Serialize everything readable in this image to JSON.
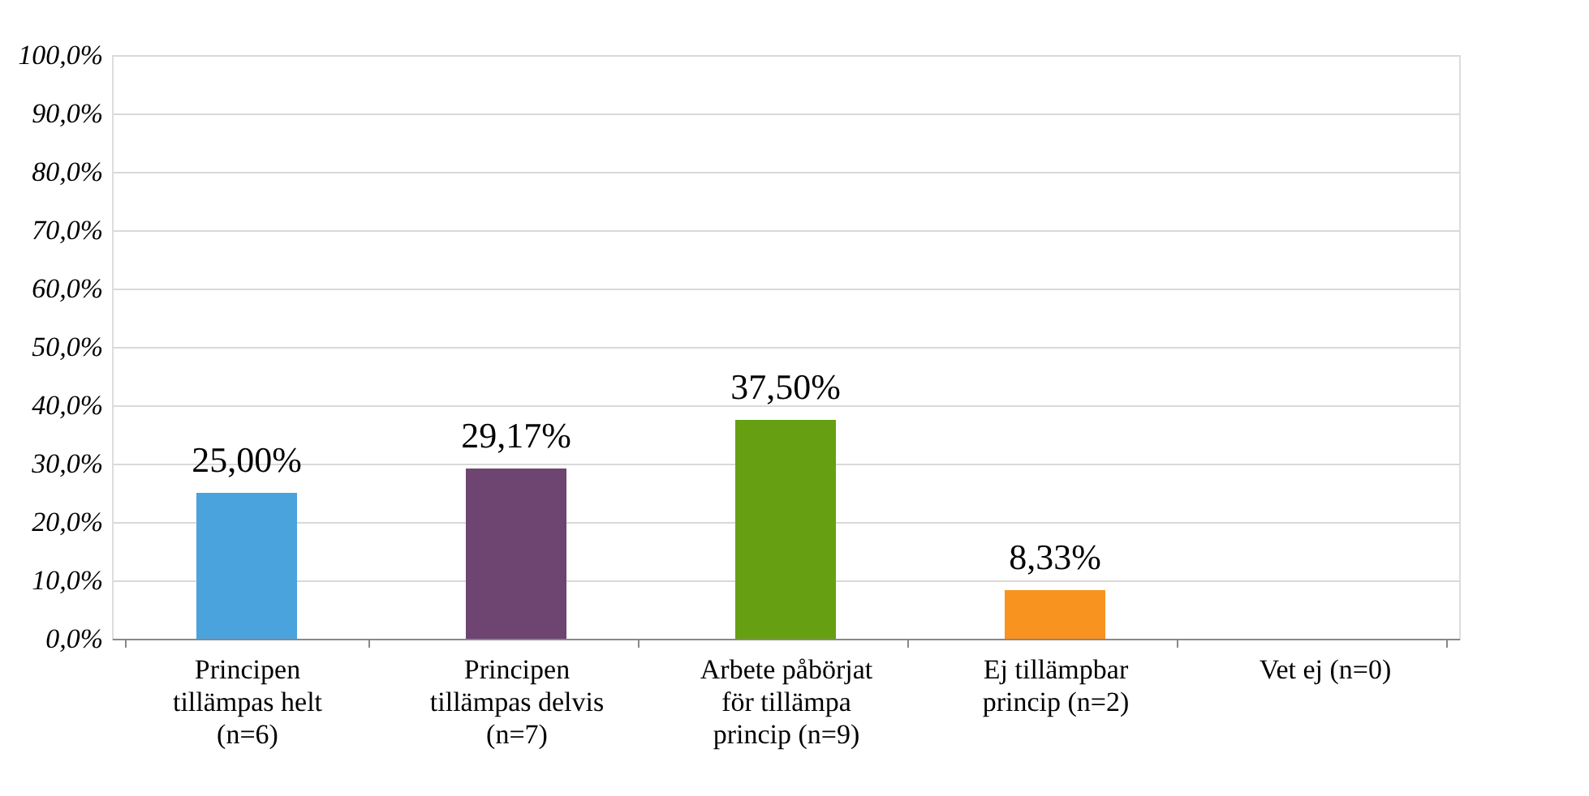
{
  "chart_data": {
    "type": "bar",
    "categories": [
      "Principen tillämpas helt (n=6)",
      "Principen tillämpas delvis (n=7)",
      "Arbete påbörjat för tillämpa princip (n=9)",
      "Ej tillämpbar princip (n=2)",
      "Vet ej (n=0)"
    ],
    "values": [
      25.0,
      29.17,
      37.5,
      8.33,
      0
    ],
    "colors": [
      "#4aa3dc",
      "#6e4470",
      "#66a012",
      "#f7931e",
      "#a0a0a0"
    ],
    "value_labels": [
      "25,00%",
      "29,17%",
      "37,50%",
      "8,33%",
      null
    ],
    "ylim": [
      0,
      100
    ],
    "yticks": [
      {
        "value": 0,
        "label": "0,0%"
      },
      {
        "value": 10,
        "label": "10,0%"
      },
      {
        "value": 20,
        "label": "20,0%"
      },
      {
        "value": 30,
        "label": "30,0%"
      },
      {
        "value": 40,
        "label": "40,0%"
      },
      {
        "value": 50,
        "label": "50,0%"
      },
      {
        "value": 60,
        "label": "60,0%"
      },
      {
        "value": 70,
        "label": "70,0%"
      },
      {
        "value": 80,
        "label": "80,0%"
      },
      {
        "value": 90,
        "label": "90,0%"
      },
      {
        "value": 100,
        "label": "100,0%"
      }
    ],
    "grid": "y"
  }
}
